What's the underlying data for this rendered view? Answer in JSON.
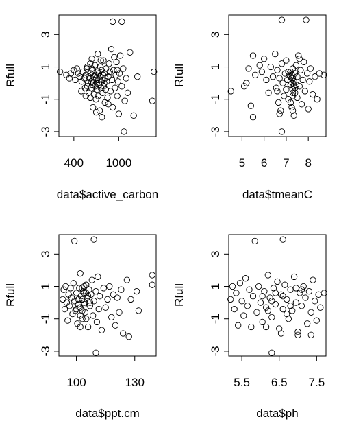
{
  "chart_data": [
    {
      "type": "scatter",
      "xlabel": "data$active_carbon",
      "ylabel": "Rfull",
      "xlim": [
        200,
        1500
      ],
      "ylim": [
        -3.3,
        4.2
      ],
      "xticks": [
        400,
        1000
      ],
      "xtick_labels": [
        "400",
        "1000"
      ],
      "yticks": [
        -3,
        -1,
        1,
        3
      ],
      "ytick_labels": [
        "-3",
        "-1",
        "1",
        "3"
      ],
      "points": [
        [
          215,
          0.7
        ],
        [
          300,
          0.5
        ],
        [
          340,
          0.3
        ],
        [
          360,
          0.6
        ],
        [
          400,
          0.8
        ],
        [
          420,
          0.2
        ],
        [
          440,
          0.9
        ],
        [
          460,
          0.6
        ],
        [
          480,
          0.4
        ],
        [
          500,
          -0.5
        ],
        [
          505,
          0.1
        ],
        [
          520,
          0.7
        ],
        [
          540,
          0.3
        ],
        [
          550,
          -0.3
        ],
        [
          560,
          0.5
        ],
        [
          570,
          0.9
        ],
        [
          580,
          -0.2
        ],
        [
          590,
          0.0
        ],
        [
          600,
          0.4
        ],
        [
          600,
          -0.6
        ],
        [
          610,
          0.3
        ],
        [
          620,
          -0.9
        ],
        [
          625,
          0.6
        ],
        [
          630,
          0.1
        ],
        [
          635,
          -0.3
        ],
        [
          640,
          1.5
        ],
        [
          645,
          -0.1
        ],
        [
          650,
          0.8
        ],
        [
          655,
          -1.5
        ],
        [
          660,
          0.0
        ],
        [
          665,
          0.4
        ],
        [
          670,
          -0.7
        ],
        [
          675,
          0.2
        ],
        [
          680,
          1.1
        ],
        [
          685,
          -0.2
        ],
        [
          690,
          0.5
        ],
        [
          695,
          -1.0
        ],
        [
          700,
          0.3
        ],
        [
          705,
          0.0
        ],
        [
          710,
          -0.4
        ],
        [
          715,
          0.7
        ],
        [
          720,
          1.8
        ],
        [
          725,
          -0.8
        ],
        [
          730,
          0.2
        ],
        [
          735,
          0.6
        ],
        [
          740,
          -0.1
        ],
        [
          745,
          -1.7
        ],
        [
          750,
          0.4
        ],
        [
          755,
          1.0
        ],
        [
          760,
          -0.3
        ],
        [
          765,
          0.1
        ],
        [
          770,
          0.8
        ],
        [
          775,
          -2.1
        ],
        [
          780,
          0.2
        ],
        [
          785,
          -0.6
        ],
        [
          790,
          0.5
        ],
        [
          795,
          1.4
        ],
        [
          800,
          -0.2
        ],
        [
          805,
          0.0
        ],
        [
          810,
          0.6
        ],
        [
          815,
          -1.2
        ],
        [
          820,
          0.3
        ],
        [
          825,
          -0.4
        ],
        [
          830,
          0.9
        ],
        [
          840,
          0.1
        ],
        [
          850,
          -0.9
        ],
        [
          860,
          0.4
        ],
        [
          870,
          1.2
        ],
        [
          880,
          0.7
        ],
        [
          890,
          -0.5
        ],
        [
          900,
          2.1
        ],
        [
          910,
          0.2
        ],
        [
          920,
          -1.5
        ],
        [
          930,
          0.8
        ],
        [
          940,
          1.6
        ],
        [
          950,
          -0.3
        ],
        [
          960,
          0.5
        ],
        [
          970,
          1.3
        ],
        [
          980,
          -0.8
        ],
        [
          990,
          0.1
        ],
        [
          1000,
          -1.9
        ],
        [
          1010,
          0.6
        ],
        [
          1020,
          1.7
        ],
        [
          1040,
          -0.2
        ],
        [
          1060,
          0.9
        ],
        [
          1080,
          -1.1
        ],
        [
          1100,
          0.3
        ],
        [
          1150,
          1.9
        ],
        [
          1200,
          -2.0
        ],
        [
          1250,
          0.4
        ],
        [
          1470,
          0.7
        ],
        [
          1450,
          -1.1
        ],
        [
          1070,
          -3.0
        ],
        [
          920,
          3.8
        ],
        [
          1040,
          3.8
        ],
        [
          640,
          0.9
        ],
        [
          700,
          -1.8
        ],
        [
          760,
          1.4
        ],
        [
          860,
          -1.3
        ],
        [
          580,
          1.0
        ],
        [
          620,
          1.2
        ],
        [
          560,
          -0.8
        ],
        [
          1120,
          -0.6
        ],
        [
          980,
          0.8
        ]
      ]
    },
    {
      "type": "scatter",
      "xlabel": "data$tmeanC",
      "ylabel": "Rfull",
      "xlim": [
        4.4,
        8.8
      ],
      "ylim": [
        -3.3,
        4.2
      ],
      "xticks": [
        5,
        6,
        7,
        8
      ],
      "xtick_labels": [
        "5",
        "6",
        "7",
        "8"
      ],
      "yticks": [
        -3,
        -1,
        1,
        3
      ],
      "ytick_labels": [
        "-3",
        "-1",
        "1",
        "3"
      ],
      "points": [
        [
          4.5,
          -0.5
        ],
        [
          5.1,
          -0.2
        ],
        [
          5.2,
          0.0
        ],
        [
          5.3,
          0.9
        ],
        [
          5.5,
          1.7
        ],
        [
          5.4,
          -1.4
        ],
        [
          5.5,
          -2.1
        ],
        [
          5.6,
          0.5
        ],
        [
          5.8,
          1.1
        ],
        [
          5.9,
          0.7
        ],
        [
          6.0,
          1.5
        ],
        [
          6.1,
          0.2
        ],
        [
          6.2,
          -0.6
        ],
        [
          6.3,
          1.0
        ],
        [
          6.4,
          0.4
        ],
        [
          6.5,
          1.8
        ],
        [
          6.55,
          -0.3
        ],
        [
          6.6,
          0.8
        ],
        [
          6.65,
          -1.2
        ],
        [
          6.7,
          0.3
        ],
        [
          6.75,
          -1.7
        ],
        [
          6.8,
          1.2
        ],
        [
          6.8,
          3.9
        ],
        [
          6.85,
          0.0
        ],
        [
          6.9,
          -0.8
        ],
        [
          6.95,
          0.6
        ],
        [
          7.0,
          -0.4
        ],
        [
          7.0,
          1.4
        ],
        [
          7.05,
          0.2
        ],
        [
          7.1,
          -1.0
        ],
        [
          7.15,
          0.5
        ],
        [
          7.2,
          -0.1
        ],
        [
          7.2,
          0.7
        ],
        [
          7.25,
          -1.5
        ],
        [
          7.25,
          0.3
        ],
        [
          7.3,
          -0.6
        ],
        [
          7.3,
          0.9
        ],
        [
          7.35,
          -2.0
        ],
        [
          7.35,
          0.1
        ],
        [
          7.4,
          0.6
        ],
        [
          7.4,
          -0.3
        ],
        [
          7.45,
          1.1
        ],
        [
          7.5,
          -0.9
        ],
        [
          7.5,
          0.4
        ],
        [
          7.55,
          1.7
        ],
        [
          7.6,
          -0.2
        ],
        [
          7.65,
          0.8
        ],
        [
          7.7,
          -1.3
        ],
        [
          7.75,
          0.2
        ],
        [
          7.8,
          1.3
        ],
        [
          7.85,
          -0.5
        ],
        [
          7.9,
          3.9
        ],
        [
          7.95,
          0.6
        ],
        [
          8.0,
          -1.6
        ],
        [
          8.05,
          0.1
        ],
        [
          8.1,
          0.9
        ],
        [
          8.2,
          -0.7
        ],
        [
          8.3,
          0.4
        ],
        [
          8.4,
          -1.0
        ],
        [
          8.5,
          0.6
        ],
        [
          8.7,
          0.5
        ],
        [
          7.3,
          0.0
        ],
        [
          7.3,
          -0.4
        ],
        [
          7.3,
          0.3
        ],
        [
          7.3,
          -0.8
        ],
        [
          7.2,
          0.1
        ],
        [
          7.2,
          -1.2
        ],
        [
          7.25,
          0.5
        ],
        [
          7.35,
          -0.2
        ],
        [
          7.4,
          -0.6
        ],
        [
          7.2,
          0.4
        ],
        [
          7.3,
          -1.7
        ],
        [
          6.8,
          -3.0
        ],
        [
          6.7,
          -1.9
        ],
        [
          7.1,
          0.7
        ],
        [
          7.45,
          -0.1
        ],
        [
          6.6,
          -0.5
        ],
        [
          7.6,
          1.5
        ]
      ]
    },
    {
      "type": "scatter",
      "xlabel": "data$ppt.cm",
      "ylabel": "Rfull",
      "xlim": [
        91,
        141
      ],
      "ylim": [
        -3.3,
        4.2
      ],
      "xticks": [
        100,
        130
      ],
      "xtick_labels": [
        "100",
        "130"
      ],
      "yticks": [
        -3,
        -1,
        1,
        3
      ],
      "ytick_labels": [
        "-3",
        "-1",
        "1",
        "3"
      ],
      "points": [
        [
          93,
          0.2
        ],
        [
          93.5,
          0.8
        ],
        [
          94,
          -0.4
        ],
        [
          94.5,
          1.0
        ],
        [
          95,
          0.0
        ],
        [
          95.5,
          -1.1
        ],
        [
          96,
          0.5
        ],
        [
          96.5,
          -0.2
        ],
        [
          97,
          0.9
        ],
        [
          97.5,
          0.3
        ],
        [
          98,
          -0.7
        ],
        [
          98.5,
          1.2
        ],
        [
          99,
          0.1
        ],
        [
          99.5,
          -0.5
        ],
        [
          99,
          3.8
        ],
        [
          100,
          0.6
        ],
        [
          100.5,
          -1.3
        ],
        [
          101,
          0.2
        ],
        [
          101.5,
          0.9
        ],
        [
          102,
          -0.3
        ],
        [
          102,
          1.8
        ],
        [
          102.5,
          0.4
        ],
        [
          103,
          -1.0
        ],
        [
          103.5,
          0.7
        ],
        [
          104,
          0.0
        ],
        [
          104.5,
          -0.6
        ],
        [
          105,
          1.1
        ],
        [
          105.5,
          0.3
        ],
        [
          106,
          -1.5
        ],
        [
          106.5,
          0.8
        ],
        [
          107,
          -0.2
        ],
        [
          107.5,
          0.5
        ],
        [
          108,
          1.4
        ],
        [
          108.5,
          -0.8
        ],
        [
          109,
          0.1
        ],
        [
          109,
          3.9
        ],
        [
          110,
          0.7
        ],
        [
          110.5,
          -1.2
        ],
        [
          111,
          1.6
        ],
        [
          111.5,
          -0.4
        ],
        [
          112,
          0.4
        ],
        [
          113,
          -1.7
        ],
        [
          114,
          0.9
        ],
        [
          115,
          -0.3
        ],
        [
          116,
          0.2
        ],
        [
          117,
          1.0
        ],
        [
          118,
          -0.9
        ],
        [
          119,
          0.5
        ],
        [
          120,
          -1.4
        ],
        [
          121,
          0.3
        ],
        [
          122,
          -0.6
        ],
        [
          123,
          0.8
        ],
        [
          124,
          -1.9
        ],
        [
          126,
          1.4
        ],
        [
          127,
          -2.1
        ],
        [
          128,
          0.2
        ],
        [
          131,
          0.7
        ],
        [
          132,
          -0.5
        ],
        [
          139,
          1.7
        ],
        [
          139,
          1.1
        ],
        [
          102,
          -0.8
        ],
        [
          103,
          0.9
        ],
        [
          104,
          -0.1
        ],
        [
          104,
          0.6
        ],
        [
          105,
          -1.0
        ],
        [
          103,
          0.2
        ],
        [
          102,
          -1.5
        ],
        [
          106,
          0.4
        ],
        [
          101,
          -0.1
        ],
        [
          100,
          -0.4
        ],
        [
          104,
          1.0
        ],
        [
          103,
          -0.5
        ],
        [
          110,
          -3.1
        ],
        [
          107,
          0.0
        ],
        [
          105,
          0.6
        ]
      ]
    },
    {
      "type": "scatter",
      "xlabel": "data$ph",
      "ylabel": "Rfull",
      "xlim": [
        5.15,
        7.75
      ],
      "ylim": [
        -3.3,
        4.2
      ],
      "xticks": [
        5.5,
        6.5,
        7.5
      ],
      "xtick_labels": [
        "5.5",
        "6.5",
        "7.5"
      ],
      "yticks": [
        -3,
        -1,
        1,
        3
      ],
      "ytick_labels": [
        "-3",
        "-1",
        "1",
        "3"
      ],
      "points": [
        [
          5.2,
          0.2
        ],
        [
          5.25,
          1.0
        ],
        [
          5.3,
          -0.4
        ],
        [
          5.35,
          0.6
        ],
        [
          5.4,
          -1.4
        ],
        [
          5.45,
          1.2
        ],
        [
          5.5,
          0.1
        ],
        [
          5.55,
          -0.8
        ],
        [
          5.6,
          1.5
        ],
        [
          5.65,
          -0.2
        ],
        [
          5.7,
          0.8
        ],
        [
          5.75,
          -1.5
        ],
        [
          5.8,
          0.4
        ],
        [
          5.85,
          3.8
        ],
        [
          5.9,
          -0.6
        ],
        [
          5.95,
          1.0
        ],
        [
          6.0,
          0.0
        ],
        [
          6.05,
          -1.2
        ],
        [
          6.1,
          0.7
        ],
        [
          6.15,
          -0.3
        ],
        [
          6.2,
          1.7
        ],
        [
          6.25,
          0.3
        ],
        [
          6.3,
          -0.9
        ],
        [
          6.3,
          -3.1
        ],
        [
          6.35,
          0.9
        ],
        [
          6.4,
          -0.1
        ],
        [
          6.45,
          1.3
        ],
        [
          6.5,
          -1.6
        ],
        [
          6.55,
          0.5
        ],
        [
          6.6,
          -0.4
        ],
        [
          6.6,
          3.9
        ],
        [
          6.65,
          1.1
        ],
        [
          6.7,
          0.2
        ],
        [
          6.75,
          -1.0
        ],
        [
          6.8,
          0.8
        ],
        [
          6.85,
          -0.5
        ],
        [
          6.9,
          1.6
        ],
        [
          6.95,
          0.0
        ],
        [
          7.0,
          -1.8
        ],
        [
          7.05,
          0.6
        ],
        [
          7.1,
          -0.2
        ],
        [
          7.15,
          1.0
        ],
        [
          7.2,
          0.3
        ],
        [
          7.25,
          -1.3
        ],
        [
          7.3,
          0.7
        ],
        [
          7.35,
          -0.6
        ],
        [
          7.4,
          1.4
        ],
        [
          7.45,
          0.1
        ],
        [
          7.5,
          -1.1
        ],
        [
          7.55,
          0.5
        ],
        [
          7.6,
          -0.3
        ],
        [
          7.7,
          0.6
        ],
        [
          7.0,
          -2.0
        ],
        [
          7.35,
          -2.0
        ],
        [
          6.55,
          -1.9
        ],
        [
          6.05,
          0.4
        ],
        [
          6.2,
          -0.5
        ],
        [
          6.4,
          0.6
        ],
        [
          6.7,
          -0.7
        ],
        [
          6.95,
          0.9
        ],
        [
          6.3,
          0.1
        ],
        [
          6.8,
          -0.2
        ],
        [
          6.6,
          0.4
        ],
        [
          6.15,
          -1.5
        ],
        [
          7.1,
          0.8
        ]
      ]
    }
  ]
}
